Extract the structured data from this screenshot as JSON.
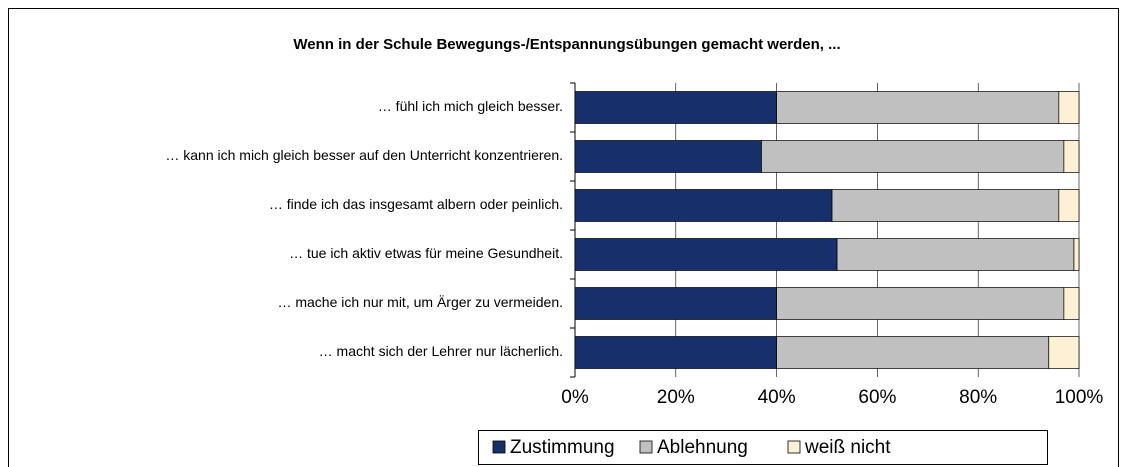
{
  "chart_data": {
    "type": "bar",
    "orientation": "horizontal",
    "stacked": true,
    "title": "Wenn in der Schule Bewegungs-/Entspannungsübungen gemacht werden, ...",
    "categories": [
      "… fühl ich mich gleich besser.",
      "… kann ich mich gleich besser auf den Unterricht konzentrieren.",
      "… finde ich das insgesamt albern oder peinlich.",
      "… tue ich aktiv etwas für meine Gesundheit.",
      "… mache ich nur mit, um Ärger zu vermeiden.",
      "… macht sich der Lehrer nur lächerlich."
    ],
    "series": [
      {
        "name": "Zustimmung",
        "color": "#17306b",
        "values": [
          40,
          37,
          51,
          52,
          40,
          40
        ]
      },
      {
        "name": "Ablehnung",
        "color": "#c0c0c0",
        "values": [
          56,
          60,
          45,
          47,
          57,
          54
        ]
      },
      {
        "name": "weiß nicht",
        "color": "#fdf0d4",
        "values": [
          4,
          3,
          4,
          1,
          3,
          6
        ]
      }
    ],
    "xlim": [
      0,
      100
    ],
    "xticks": [
      {
        "value": 0,
        "label": "0%"
      },
      {
        "value": 20,
        "label": "20%"
      },
      {
        "value": 40,
        "label": "40%"
      },
      {
        "value": 60,
        "label": "60%"
      },
      {
        "value": 80,
        "label": "80%"
      },
      {
        "value": 100,
        "label": "100%"
      }
    ],
    "grid": true,
    "legend": "bottom"
  }
}
